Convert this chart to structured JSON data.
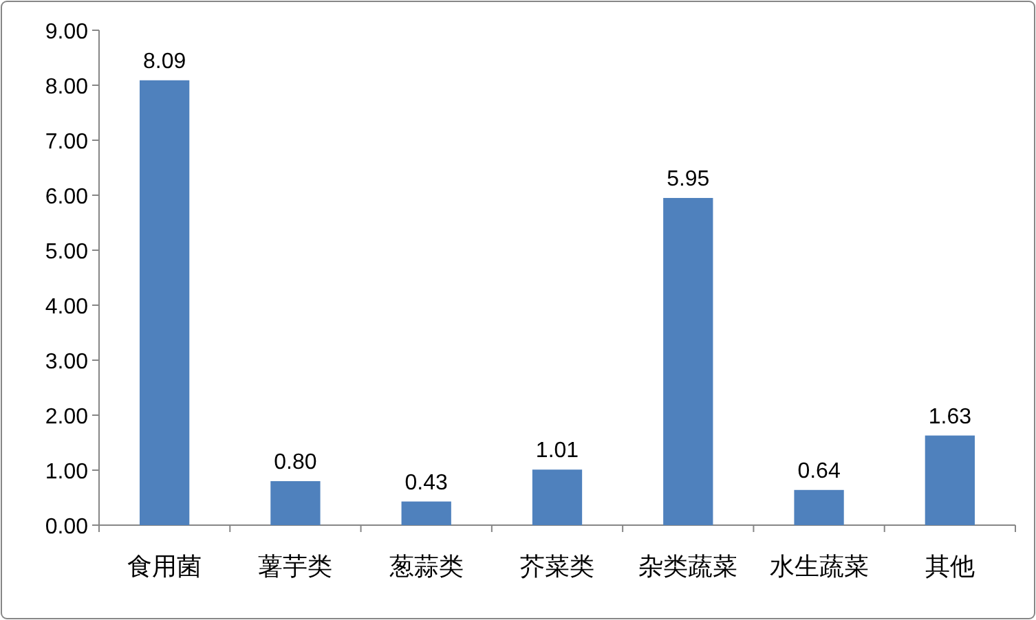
{
  "chart_data": {
    "type": "bar",
    "categories": [
      "食用菌",
      "薯芋类",
      "葱蒜类",
      "芥菜类",
      "杂类蔬菜",
      "水生蔬菜",
      "其他"
    ],
    "values": [
      8.09,
      0.8,
      0.43,
      1.01,
      5.95,
      0.64,
      1.63
    ],
    "value_labels": [
      "8.09",
      "0.80",
      "0.43",
      "1.01",
      "5.95",
      "0.64",
      "1.63"
    ],
    "color": "#4f81bd",
    "ylim": [
      0,
      9
    ],
    "yticks": [
      {
        "value": 0,
        "label": "0.00"
      },
      {
        "value": 1,
        "label": "1.00"
      },
      {
        "value": 2,
        "label": "2.00"
      },
      {
        "value": 3,
        "label": "3.00"
      },
      {
        "value": 4,
        "label": "4.00"
      },
      {
        "value": 5,
        "label": "5.00"
      },
      {
        "value": 6,
        "label": "6.00"
      },
      {
        "value": 7,
        "label": "7.00"
      },
      {
        "value": 8,
        "label": "8.00"
      },
      {
        "value": 9,
        "label": "9.00"
      }
    ],
    "grid": false
  }
}
